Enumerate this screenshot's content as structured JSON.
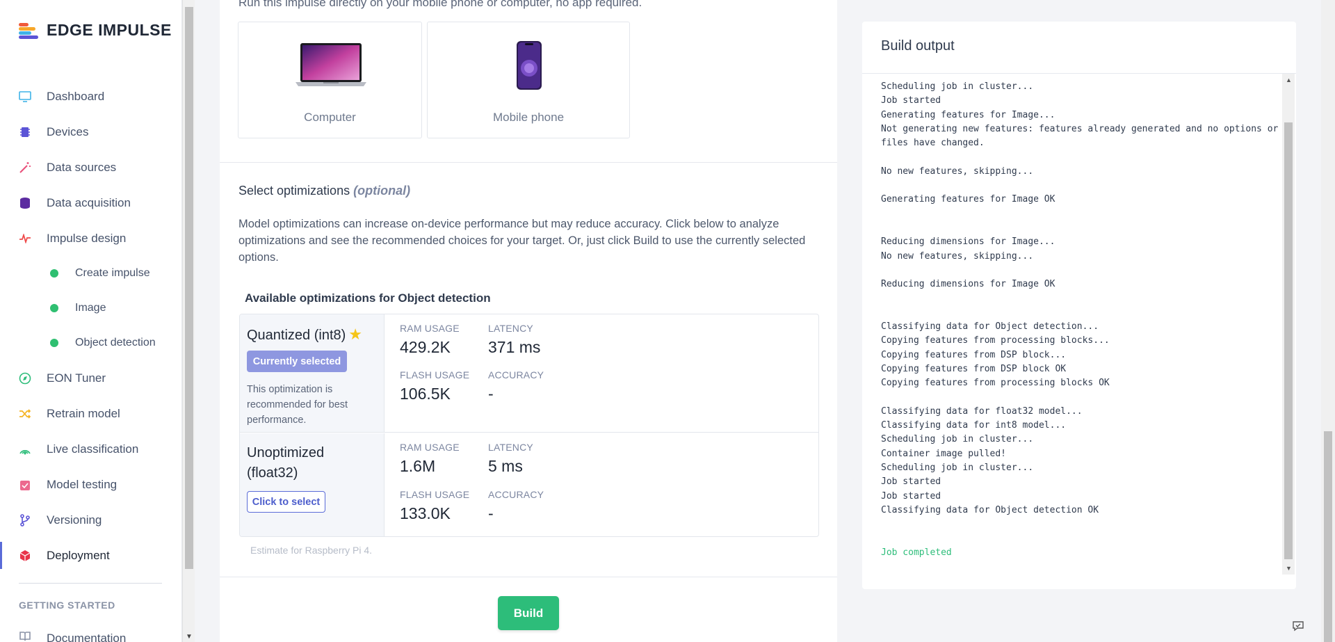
{
  "logo": {
    "text": "EDGE IMPULSE",
    "colors": [
      "#f05a3a",
      "#f7a72a",
      "#3fb3e8",
      "#5b54d6"
    ]
  },
  "sidebar": {
    "items": [
      {
        "label": "Dashboard",
        "icon": "monitor-icon",
        "color": "#3fb3e8"
      },
      {
        "label": "Devices",
        "icon": "chip-icon",
        "color": "#5b54d6"
      },
      {
        "label": "Data sources",
        "icon": "wand-icon",
        "color": "#e94f7a"
      },
      {
        "label": "Data acquisition",
        "icon": "database-icon",
        "color": "#5b2ba0"
      },
      {
        "label": "Impulse design",
        "icon": "pulse-icon",
        "color": "#ef4b4b"
      },
      {
        "label": "Create impulse",
        "icon": "status-dot-icon",
        "sub": true
      },
      {
        "label": "Image",
        "icon": "status-dot-icon",
        "sub": true
      },
      {
        "label": "Object detection",
        "icon": "status-dot-icon",
        "sub": true
      },
      {
        "label": "EON Tuner",
        "icon": "compass-icon",
        "color": "#2dbd7a"
      },
      {
        "label": "Retrain model",
        "icon": "shuffle-icon",
        "color": "#f5b423"
      },
      {
        "label": "Live classification",
        "icon": "signal-icon",
        "color": "#2dbd7a"
      },
      {
        "label": "Model testing",
        "icon": "clipboard-check-icon",
        "color": "#e94f7a"
      },
      {
        "label": "Versioning",
        "icon": "branch-icon",
        "color": "#5b54d6"
      },
      {
        "label": "Deployment",
        "icon": "package-icon",
        "color": "#e8344a",
        "active": true
      }
    ],
    "getting_started": "GETTING STARTED",
    "documentation": "Documentation"
  },
  "main": {
    "run_note": "Run this impulse directly on your mobile phone or computer, no app required.",
    "devices": [
      {
        "label": "Computer",
        "icon": "laptop-icon"
      },
      {
        "label": "Mobile phone",
        "icon": "phone-icon"
      }
    ],
    "opt_title": "Select optimizations",
    "opt_optional": "(optional)",
    "opt_desc": "Model optimizations can increase on-device performance but may reduce accuracy. Click below to analyze optimizations and see the recommended choices for your target. Or, just click Build to use the currently selected options.",
    "available_title": "Available optimizations for Object detection",
    "optimizations": [
      {
        "name": "Quantized (int8)",
        "badge": "Currently selected",
        "note": "This optimization is recommended for best performance.",
        "ram_label": "RAM USAGE",
        "ram": "429.2K",
        "latency_label": "LATENCY",
        "latency": "371 ms",
        "flash_label": "FLASH USAGE",
        "flash": "106.5K",
        "accuracy_label": "ACCURACY",
        "accuracy": "-"
      },
      {
        "name": "Unoptimized (float32)",
        "button": "Click to select",
        "ram_label": "RAM USAGE",
        "ram": "1.6M",
        "latency_label": "LATENCY",
        "latency": "5 ms",
        "flash_label": "FLASH USAGE",
        "flash": "133.0K",
        "accuracy_label": "ACCURACY",
        "accuracy": "-"
      }
    ],
    "estimate": "Estimate for Raspberry Pi 4.",
    "build_label": "Build"
  },
  "output": {
    "title": "Build output",
    "log": [
      "Scheduling job in cluster...",
      "Job started",
      "Generating features for Image...",
      "Not generating new features: features already generated and no options or",
      "files have changed.",
      "",
      "No new features, skipping...",
      "",
      "Generating features for Image OK",
      "",
      "",
      "Reducing dimensions for Image...",
      "No new features, skipping...",
      "",
      "Reducing dimensions for Image OK",
      "",
      "",
      "Classifying data for Object detection...",
      "Copying features from processing blocks...",
      "Copying features from DSP block...",
      "Copying features from DSP block OK",
      "Copying features from processing blocks OK",
      "",
      "Classifying data for float32 model...",
      "Classifying data for int8 model...",
      "Scheduling job in cluster...",
      "Container image pulled!",
      "Scheduling job in cluster...",
      "Job started",
      "Job started",
      "Classifying data for Object detection OK",
      "",
      "",
      "Job completed"
    ]
  }
}
